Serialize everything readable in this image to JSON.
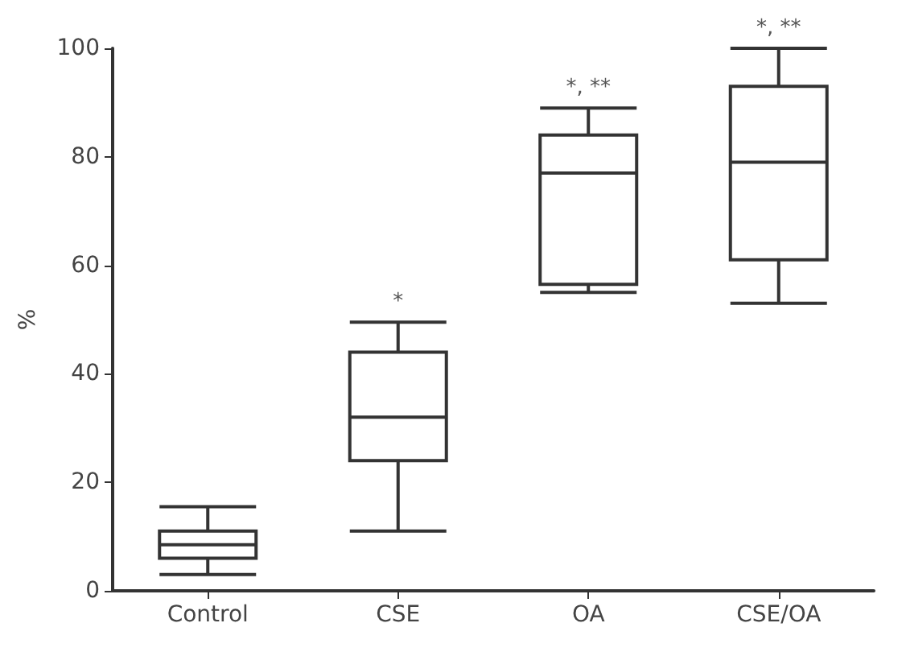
{
  "chart_data": {
    "type": "box",
    "ylabel": "%",
    "categories": [
      "Control",
      "CSE",
      "OA",
      "CSE/OA"
    ],
    "boxes": [
      {
        "low": 3,
        "q1": 6,
        "median": 8.5,
        "q3": 11,
        "high": 15.5
      },
      {
        "low": 11,
        "q1": 24,
        "median": 32,
        "q3": 44,
        "high": 49.5
      },
      {
        "low": 55,
        "q1": 56.5,
        "median": 77,
        "q3": 84,
        "high": 89
      },
      {
        "low": 53,
        "q1": 61,
        "median": 79,
        "q3": 93,
        "high": 100
      }
    ],
    "color": "#333333",
    "ylim": [
      0,
      100
    ],
    "yticks": [
      0,
      20,
      40,
      60,
      80,
      100
    ],
    "grid": false,
    "annotations": [
      {
        "text": "*",
        "x": "CSE",
        "y": 49.5
      },
      {
        "text": "*, **",
        "x": "OA",
        "y": 89
      },
      {
        "text": "*, **",
        "x": "CSE/OA",
        "y": 100
      }
    ]
  }
}
